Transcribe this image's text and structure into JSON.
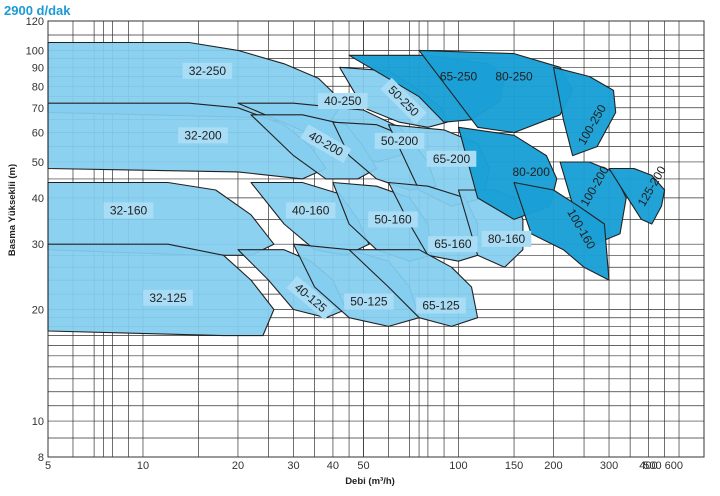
{
  "header": {
    "speed_label": "2900 d/dak"
  },
  "chart_data": {
    "type": "area",
    "title": "2900 d/dak",
    "xlabel": "Debi (m³/h)",
    "ylabel": "Basma Yükseklii (m)",
    "x_scale": "log",
    "y_scale": "log",
    "xlim": [
      5,
      600
    ],
    "ylim": [
      8,
      120
    ],
    "x_ticks": [
      5,
      10,
      20,
      30,
      40,
      50,
      100,
      150,
      200,
      300,
      400,
      500,
      600
    ],
    "x_tick_labels": [
      "5",
      "10",
      "20",
      "30",
      "40",
      "50",
      "100",
      "150",
      "200",
      "300",
      "400",
      "500 600"
    ],
    "y_ticks": [
      8,
      10,
      20,
      30,
      40,
      50,
      60,
      70,
      80,
      90,
      100,
      120
    ],
    "y_tick_labels": [
      "8",
      "10",
      "20",
      "30",
      "40",
      "50",
      "60",
      "70",
      "80",
      "90",
      "100",
      "120"
    ],
    "grid": true,
    "colors": {
      "light_zone": "#84cdf0",
      "dark_zone": "#1aa0d6",
      "outline": "#222222",
      "label_box": "#a9dcf5"
    },
    "series": [
      {
        "name": "32-250",
        "label_at": [
          16,
          88
        ],
        "label_rotation": 0,
        "shade": "light",
        "outline": [
          [
            5,
            105
          ],
          [
            14,
            105
          ],
          [
            20,
            100
          ],
          [
            28,
            92
          ],
          [
            36,
            84
          ],
          [
            40,
            77
          ],
          [
            42,
            70
          ],
          [
            38,
            62
          ],
          [
            22,
            66
          ],
          [
            5,
            68
          ]
        ]
      },
      {
        "name": "40-250",
        "label_at": [
          43,
          73
        ],
        "label_rotation": 0,
        "shade": "light",
        "outline": [
          [
            20,
            72
          ],
          [
            30,
            72
          ],
          [
            50,
            69
          ],
          [
            65,
            62
          ],
          [
            72,
            56
          ],
          [
            65,
            52
          ],
          [
            55,
            50
          ],
          [
            40,
            56
          ]
        ]
      },
      {
        "name": "50-250",
        "label_at": [
          67,
          73
        ],
        "label_rotation": 45,
        "shade": "light",
        "outline": [
          [
            42,
            90
          ],
          [
            60,
            88
          ],
          [
            75,
            78
          ],
          [
            88,
            70
          ],
          [
            92,
            64
          ],
          [
            80,
            62
          ],
          [
            65,
            64
          ],
          [
            50,
            70
          ]
        ]
      },
      {
        "name": "65-250",
        "label_at": [
          100,
          85
        ],
        "label_rotation": 0,
        "shade": "dark",
        "outline": [
          [
            45,
            97
          ],
          [
            80,
            97
          ],
          [
            125,
            92
          ],
          [
            140,
            85
          ],
          [
            135,
            73
          ],
          [
            110,
            65
          ],
          [
            90,
            64
          ],
          [
            75,
            75
          ]
        ]
      },
      {
        "name": "80-250",
        "label_at": [
          150,
          85
        ],
        "label_rotation": 0,
        "shade": "dark",
        "outline": [
          [
            75,
            100
          ],
          [
            150,
            98
          ],
          [
            210,
            90
          ],
          [
            230,
            78
          ],
          [
            210,
            67
          ],
          [
            150,
            60
          ],
          [
            115,
            62
          ]
        ]
      },
      {
        "name": "100-250",
        "label_at": [
          265,
          63
        ],
        "label_rotation": -60,
        "shade": "dark",
        "outline": [
          [
            200,
            90
          ],
          [
            260,
            85
          ],
          [
            310,
            78
          ],
          [
            315,
            68
          ],
          [
            275,
            55
          ],
          [
            230,
            52
          ],
          [
            215,
            65
          ]
        ]
      },
      {
        "name": "32-200",
        "label_at": [
          15.5,
          59
        ],
        "label_rotation": 0,
        "shade": "light",
        "outline": [
          [
            5,
            72
          ],
          [
            14,
            72
          ],
          [
            20,
            70
          ],
          [
            28,
            63
          ],
          [
            34,
            55
          ],
          [
            38,
            48
          ],
          [
            32,
            45
          ],
          [
            20,
            47
          ],
          [
            5,
            48
          ]
        ]
      },
      {
        "name": "40-200",
        "label_at": [
          38,
          56
        ],
        "label_rotation": 30,
        "shade": "light",
        "outline": [
          [
            22,
            67
          ],
          [
            32,
            67
          ],
          [
            44,
            63
          ],
          [
            50,
            55
          ],
          [
            55,
            48
          ],
          [
            48,
            45
          ],
          [
            38,
            45
          ],
          [
            30,
            52
          ]
        ]
      },
      {
        "name": "50-200",
        "label_at": [
          65,
          57
        ],
        "label_rotation": 0,
        "shade": "light",
        "outline": [
          [
            40,
            64
          ],
          [
            55,
            63
          ],
          [
            70,
            58
          ],
          [
            80,
            50
          ],
          [
            85,
            43
          ],
          [
            70,
            42
          ],
          [
            55,
            45
          ],
          [
            45,
            52
          ]
        ]
      },
      {
        "name": "65-200",
        "label_at": [
          95,
          51
        ],
        "label_rotation": 0,
        "shade": "light",
        "outline": [
          [
            60,
            63
          ],
          [
            90,
            61
          ],
          [
            115,
            56
          ],
          [
            125,
            48
          ],
          [
            120,
            40
          ],
          [
            95,
            38
          ],
          [
            75,
            42
          ]
        ]
      },
      {
        "name": "80-200",
        "label_at": [
          170,
          47
        ],
        "label_rotation": 0,
        "shade": "dark",
        "outline": [
          [
            100,
            62
          ],
          [
            150,
            59
          ],
          [
            190,
            52
          ],
          [
            205,
            45
          ],
          [
            195,
            38
          ],
          [
            150,
            35
          ],
          [
            115,
            40
          ]
        ]
      },
      {
        "name": "100-200",
        "label_at": [
          270,
          43
        ],
        "label_rotation": -60,
        "shade": "dark",
        "outline": [
          [
            210,
            50
          ],
          [
            260,
            50
          ],
          [
            310,
            47
          ],
          [
            340,
            40
          ],
          [
            325,
            32
          ],
          [
            270,
            30
          ],
          [
            235,
            36
          ]
        ]
      },
      {
        "name": "125-200",
        "label_at": [
          410,
          43
        ],
        "label_rotation": -60,
        "shade": "dark",
        "outline": [
          [
            300,
            48
          ],
          [
            360,
            48
          ],
          [
            410,
            46
          ],
          [
            450,
            42
          ],
          [
            440,
            38
          ],
          [
            410,
            34
          ],
          [
            380,
            35
          ]
        ]
      },
      {
        "name": "32-160",
        "label_at": [
          9,
          37
        ],
        "label_rotation": 0,
        "shade": "light",
        "outline": [
          [
            5,
            44
          ],
          [
            12,
            44
          ],
          [
            17,
            42
          ],
          [
            22,
            36
          ],
          [
            26,
            30
          ],
          [
            22,
            28
          ],
          [
            15,
            28
          ],
          [
            5,
            29
          ]
        ]
      },
      {
        "name": "40-160",
        "label_at": [
          34,
          37
        ],
        "label_rotation": 0,
        "shade": "light",
        "outline": [
          [
            22,
            44
          ],
          [
            32,
            44
          ],
          [
            42,
            41
          ],
          [
            48,
            35
          ],
          [
            52,
            30
          ],
          [
            44,
            28
          ],
          [
            35,
            29
          ],
          [
            28,
            34
          ]
        ]
      },
      {
        "name": "50-160",
        "label_at": [
          62,
          35
        ],
        "label_rotation": 0,
        "shade": "light",
        "outline": [
          [
            40,
            44
          ],
          [
            55,
            43
          ],
          [
            70,
            40
          ],
          [
            80,
            34
          ],
          [
            82,
            28
          ],
          [
            70,
            27
          ],
          [
            55,
            29
          ],
          [
            45,
            34
          ]
        ]
      },
      {
        "name": "65-160",
        "label_at": [
          96,
          30
        ],
        "label_rotation": 0,
        "shade": "light",
        "outline": [
          [
            60,
            44
          ],
          [
            80,
            43
          ],
          [
            105,
            40
          ],
          [
            115,
            34
          ],
          [
            115,
            28
          ],
          [
            100,
            27
          ],
          [
            80,
            28
          ],
          [
            70,
            34
          ]
        ]
      },
      {
        "name": "80-160",
        "label_at": [
          142,
          31
        ],
        "label_rotation": 0,
        "shade": "light",
        "outline": [
          [
            100,
            42
          ],
          [
            130,
            42
          ],
          [
            150,
            40
          ],
          [
            160,
            35
          ],
          [
            160,
            29
          ],
          [
            140,
            26
          ],
          [
            115,
            28
          ]
        ]
      },
      {
        "name": "100-160",
        "label_at": [
          245,
          33
        ],
        "label_rotation": 60,
        "shade": "dark",
        "outline": [
          [
            150,
            44
          ],
          [
            200,
            42
          ],
          [
            240,
            38
          ],
          [
            290,
            34
          ],
          [
            300,
            24
          ],
          [
            250,
            26
          ],
          [
            215,
            29
          ],
          [
            170,
            32
          ]
        ]
      },
      {
        "name": "32-125",
        "label_at": [
          12,
          21.5
        ],
        "label_rotation": 0,
        "shade": "light",
        "outline": [
          [
            5,
            30
          ],
          [
            12,
            30
          ],
          [
            18,
            28
          ],
          [
            22,
            24
          ],
          [
            26,
            20
          ],
          [
            24,
            17
          ],
          [
            18,
            17
          ],
          [
            5,
            17.5
          ]
        ]
      },
      {
        "name": "40-125",
        "label_at": [
          34,
          21.5
        ],
        "label_rotation": 40,
        "shade": "light",
        "outline": [
          [
            20,
            29
          ],
          [
            28,
            29
          ],
          [
            34,
            27
          ],
          [
            40,
            24
          ],
          [
            44,
            20
          ],
          [
            38,
            19
          ],
          [
            30,
            20
          ],
          [
            25,
            24
          ]
        ]
      },
      {
        "name": "50-125",
        "label_at": [
          52,
          21
        ],
        "label_rotation": 0,
        "shade": "light",
        "outline": [
          [
            30,
            30
          ],
          [
            45,
            29
          ],
          [
            60,
            27
          ],
          [
            70,
            23
          ],
          [
            75,
            19
          ],
          [
            60,
            18
          ],
          [
            45,
            19
          ],
          [
            35,
            23
          ]
        ]
      },
      {
        "name": "65-125",
        "label_at": [
          88,
          20.5
        ],
        "label_rotation": 0,
        "shade": "light",
        "outline": [
          [
            45,
            29
          ],
          [
            75,
            29
          ],
          [
            95,
            26
          ],
          [
            110,
            23
          ],
          [
            115,
            19
          ],
          [
            95,
            18
          ],
          [
            75,
            19
          ],
          [
            60,
            23
          ]
        ]
      }
    ]
  }
}
